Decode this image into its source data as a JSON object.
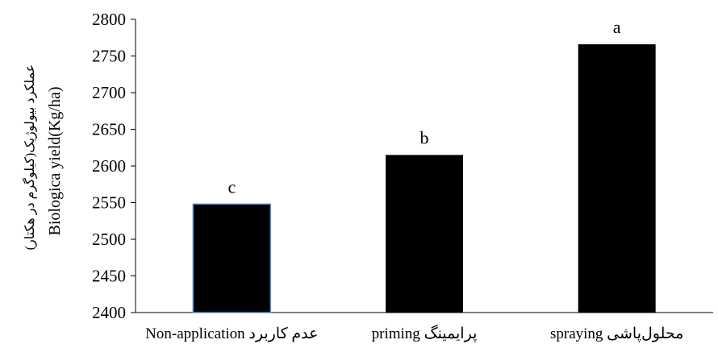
{
  "chart_data": {
    "type": "bar",
    "title": "",
    "xlabel": "",
    "ylabel_fa": "عملکرد بیولوژیک(کیلوگرم در هکتار)",
    "ylabel_en": "Biologica yield(Kg/ha)",
    "ylim": [
      2400,
      2800
    ],
    "yticks": [
      2400,
      2450,
      2500,
      2550,
      2600,
      2650,
      2700,
      2750,
      2800
    ],
    "categories": [
      "Non-application عدم کاربرد",
      "priming پرایمینگ",
      "spraying محلول‌پاشی"
    ],
    "values": [
      2548,
      2615,
      2766
    ],
    "significance_letters": [
      "c",
      "b",
      "a"
    ],
    "bar_color": "#000000",
    "first_bar_outline": "#5b8fd6",
    "grid": false,
    "legend": "none"
  }
}
